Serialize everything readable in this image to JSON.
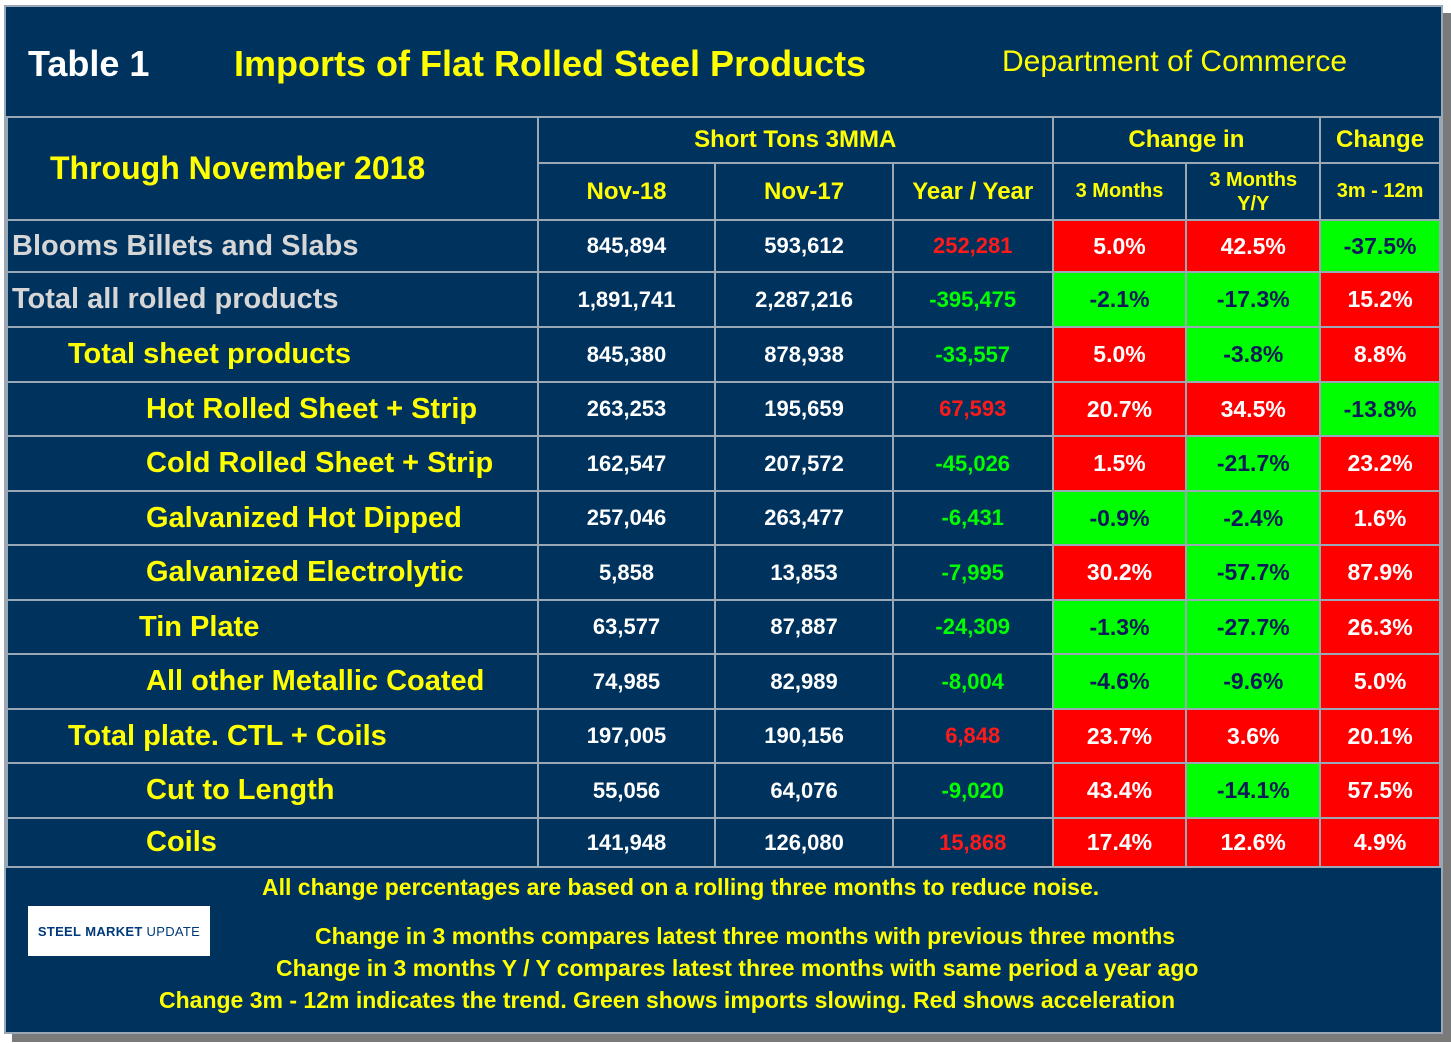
{
  "header": {
    "table_num": "Table 1",
    "title": "Imports of Flat Rolled Steel Products",
    "source": "Department of Commerce"
  },
  "columns": {
    "through": "Through November 2018",
    "short_tons": "Short Tons 3MMA",
    "change_in": "Change in",
    "change": "Change",
    "nov18": "Nov-18",
    "nov17": "Nov-17",
    "yoy": "Year / Year",
    "three_months": "3 Months",
    "three_months_yy_1": "3 Months",
    "three_months_yy_2": "Y/Y",
    "trend": "3m - 12m"
  },
  "rows": [
    {
      "label": "Blooms Billets and Slabs",
      "nov18": "845,894",
      "nov17": "593,612",
      "yoy": "252,281",
      "m3": "5.0%",
      "yy": "42.5%",
      "trend": "-37.5%"
    },
    {
      "label": "Total all rolled products",
      "nov18": "1,891,741",
      "nov17": "2,287,216",
      "yoy": "-395,475",
      "m3": "-2.1%",
      "yy": "-17.3%",
      "trend": "15.2%"
    },
    {
      "label": "Total sheet products",
      "nov18": "845,380",
      "nov17": "878,938",
      "yoy": "-33,557",
      "m3": "5.0%",
      "yy": "-3.8%",
      "trend": "8.8%"
    },
    {
      "label": "Hot Rolled Sheet + Strip",
      "nov18": "263,253",
      "nov17": "195,659",
      "yoy": "67,593",
      "m3": "20.7%",
      "yy": "34.5%",
      "trend": "-13.8%"
    },
    {
      "label": "Cold Rolled Sheet + Strip",
      "nov18": "162,547",
      "nov17": "207,572",
      "yoy": "-45,026",
      "m3": "1.5%",
      "yy": "-21.7%",
      "trend": "23.2%"
    },
    {
      "label": "Galvanized Hot Dipped",
      "nov18": "257,046",
      "nov17": "263,477",
      "yoy": "-6,431",
      "m3": "-0.9%",
      "yy": "-2.4%",
      "trend": "1.6%"
    },
    {
      "label": "Galvanized Electrolytic",
      "nov18": "5,858",
      "nov17": "13,853",
      "yoy": "-7,995",
      "m3": "30.2%",
      "yy": "-57.7%",
      "trend": "87.9%"
    },
    {
      "label": "Tin Plate",
      "nov18": "63,577",
      "nov17": "87,887",
      "yoy": "-24,309",
      "m3": "-1.3%",
      "yy": "-27.7%",
      "trend": "26.3%"
    },
    {
      "label": "All other Metallic Coated",
      "nov18": "74,985",
      "nov17": "82,989",
      "yoy": "-8,004",
      "m3": "-4.6%",
      "yy": "-9.6%",
      "trend": "5.0%"
    },
    {
      "label": "Total plate. CTL + Coils",
      "nov18": "197,005",
      "nov17": "190,156",
      "yoy": "6,848",
      "m3": "23.7%",
      "yy": "3.6%",
      "trend": "20.1%"
    },
    {
      "label": "Cut to Length",
      "nov18": "55,056",
      "nov17": "64,076",
      "yoy": "-9,020",
      "m3": "43.4%",
      "yy": "-14.1%",
      "trend": "57.5%"
    },
    {
      "label": "Coils",
      "nov18": "141,948",
      "nov17": "126,080",
      "yoy": "15,868",
      "m3": "17.4%",
      "yy": "12.6%",
      "trend": "4.9%"
    }
  ],
  "colors": {
    "background": "#00325e",
    "red": "#ff0000",
    "green": "#00ff00",
    "yellow": "#ffff00"
  },
  "notes": {
    "n1": "All change percentages are based on a rolling three months to reduce noise.",
    "n2": "Change in 3 months compares latest three months with previous three months",
    "n3": "Change in 3 months  Y / Y compares latest three months with same period a year ago",
    "n4": "Change 3m - 12m indicates the trend. Green shows imports slowing. Red shows acceleration"
  },
  "logo": {
    "text_a": "STEEL",
    "text_b": "MARKET",
    "text_c": "UPDATE"
  }
}
